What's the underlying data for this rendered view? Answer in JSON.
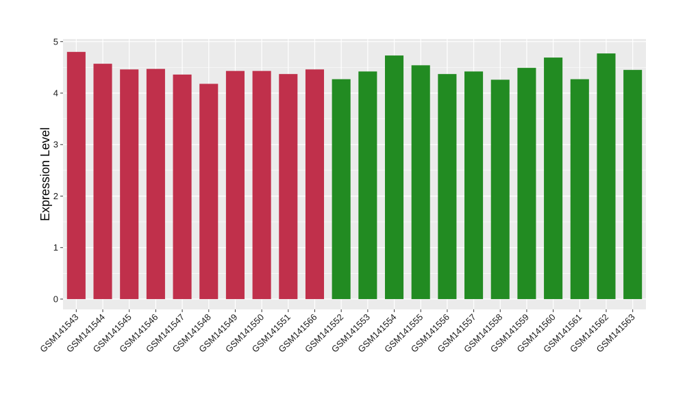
{
  "chart_data": {
    "type": "bar",
    "title": "",
    "xlabel": "",
    "ylabel": "Expression Level",
    "ylim": [
      -0.2,
      5.05
    ],
    "yticks": [
      0,
      1,
      2,
      3,
      4,
      5
    ],
    "grid": true,
    "legend": "none",
    "background_color": "#ebebeb",
    "grid_color": "#ffffff",
    "categories": [
      "GSM141543",
      "GSM141544",
      "GSM141545",
      "GSM141546",
      "GSM141547",
      "GSM141548",
      "GSM141549",
      "GSM141550",
      "GSM141551",
      "GSM141566",
      "GSM141552",
      "GSM141553",
      "GSM141554",
      "GSM141555",
      "GSM141556",
      "GSM141557",
      "GSM141558",
      "GSM141559",
      "GSM141560",
      "GSM141561",
      "GSM141562",
      "GSM141563"
    ],
    "values": [
      4.8,
      4.57,
      4.46,
      4.47,
      4.36,
      4.18,
      4.43,
      4.43,
      4.37,
      4.46,
      4.27,
      4.42,
      4.73,
      4.54,
      4.37,
      4.42,
      4.26,
      4.49,
      4.69,
      4.27,
      4.77,
      4.45
    ],
    "bar_colors": [
      "#c0304b",
      "#c0304b",
      "#c0304b",
      "#c0304b",
      "#c0304b",
      "#c0304b",
      "#c0304b",
      "#c0304b",
      "#c0304b",
      "#c0304b",
      "#228b22",
      "#228b22",
      "#228b22",
      "#228b22",
      "#228b22",
      "#228b22",
      "#228b22",
      "#228b22",
      "#228b22",
      "#228b22",
      "#228b22",
      "#228b22"
    ]
  }
}
